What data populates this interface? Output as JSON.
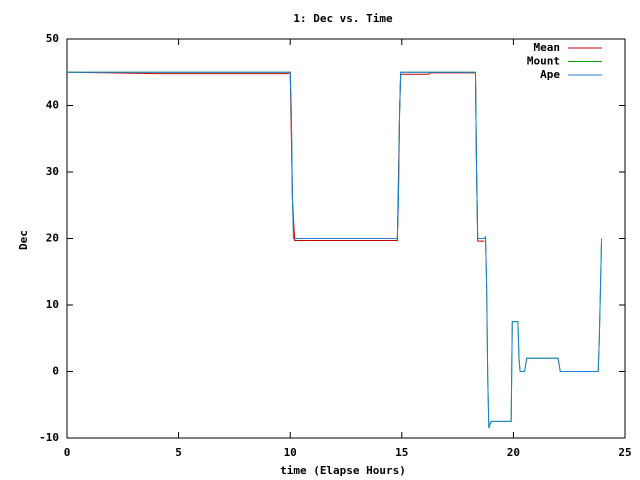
{
  "chart_data": {
    "type": "line",
    "title": "1: Dec vs. Time",
    "x_label": "time (Elapse Hours)",
    "y_label": "Dec",
    "xlim": [
      0,
      25
    ],
    "ylim": [
      -10,
      50
    ],
    "xticks": [
      0,
      5,
      10,
      15,
      20,
      25
    ],
    "yticks": [
      -10,
      0,
      10,
      20,
      30,
      40,
      50
    ],
    "grid": false,
    "legend": "top-right",
    "series": [
      {
        "name": "Mean",
        "color": "#cc0000",
        "x": [
          0,
          4,
          9.9,
          10.0,
          10.1,
          10.2,
          14.8,
          14.9,
          14.95,
          16.2,
          16.25,
          18.3,
          18.35,
          18.4,
          18.7
        ],
        "values": [
          45,
          44.8,
          44.8,
          45,
          26,
          19.7,
          19.7,
          39,
          44.7,
          44.7,
          44.9,
          44.9,
          30,
          19.6,
          19.6
        ]
      },
      {
        "name": "Mount",
        "color": "#00a000",
        "x": [
          0,
          10.0,
          10.05,
          10.1,
          10.15,
          14.8,
          14.85,
          14.9,
          14.95,
          18.3,
          18.35,
          18.4,
          18.7,
          18.75,
          18.8,
          18.85,
          18.9,
          19.0,
          19.9,
          19.95,
          20.2,
          20.25,
          20.3,
          20.5,
          20.6,
          22.0,
          22.1,
          23.8,
          23.85,
          23.95
        ],
        "values": [
          45,
          45,
          39,
          26,
          20,
          20,
          26,
          39,
          45,
          45,
          30,
          20,
          20,
          20.2,
          13,
          -1,
          -8.5,
          -7.5,
          -7.5,
          7.5,
          7.5,
          2,
          0,
          0,
          2,
          2,
          0,
          0,
          5,
          20
        ]
      },
      {
        "name": "Ape",
        "color": "#1f7fd6",
        "x": [
          0,
          10.0,
          10.05,
          10.1,
          10.15,
          14.8,
          14.85,
          14.9,
          14.95,
          18.3,
          18.35,
          18.4,
          18.7,
          18.75,
          18.8,
          18.85,
          18.9,
          19.0,
          19.9,
          19.95,
          20.2,
          20.25,
          20.3,
          20.5,
          20.6,
          22.0,
          22.1,
          23.8,
          23.85,
          23.95
        ],
        "values": [
          45,
          45,
          39,
          26,
          20,
          20,
          26,
          39,
          45,
          45,
          30,
          20,
          20,
          20.2,
          13,
          -1,
          -8.5,
          -7.5,
          -7.5,
          7.5,
          7.5,
          2,
          0,
          0,
          2,
          2,
          0,
          0,
          5,
          20
        ]
      }
    ]
  }
}
